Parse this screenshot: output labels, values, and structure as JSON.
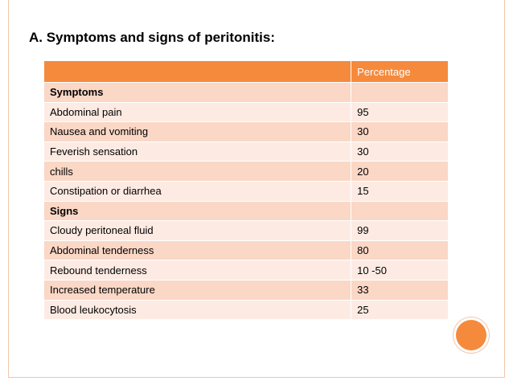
{
  "title": "A. Symptoms and signs of peritonitis:",
  "table": {
    "header": [
      "",
      "Percentage"
    ],
    "rows": [
      {
        "label": "Symptoms",
        "value": "",
        "section": true
      },
      {
        "label": "Abdominal pain",
        "value": "95"
      },
      {
        "label": "Nausea and vomiting",
        "value": "30"
      },
      {
        "label": "Feverish sensation",
        "value": "30"
      },
      {
        "label": "chills",
        "value": "20"
      },
      {
        "label": "Constipation or diarrhea",
        "value": "15"
      },
      {
        "label": "Signs",
        "value": "",
        "section": true
      },
      {
        "label": "Cloudy peritoneal fluid",
        "value": "99"
      },
      {
        "label": "Abdominal tenderness",
        "value": "80"
      },
      {
        "label": "Rebound tenderness",
        "value": "10 -50"
      },
      {
        "label": "Increased temperature",
        "value": "33"
      },
      {
        "label": "Blood leukocytosis",
        "value": "25"
      }
    ]
  },
  "colors": {
    "accent": "#f58a3d",
    "row_dark": "#fbd7c6",
    "row_light": "#fdebe3"
  }
}
